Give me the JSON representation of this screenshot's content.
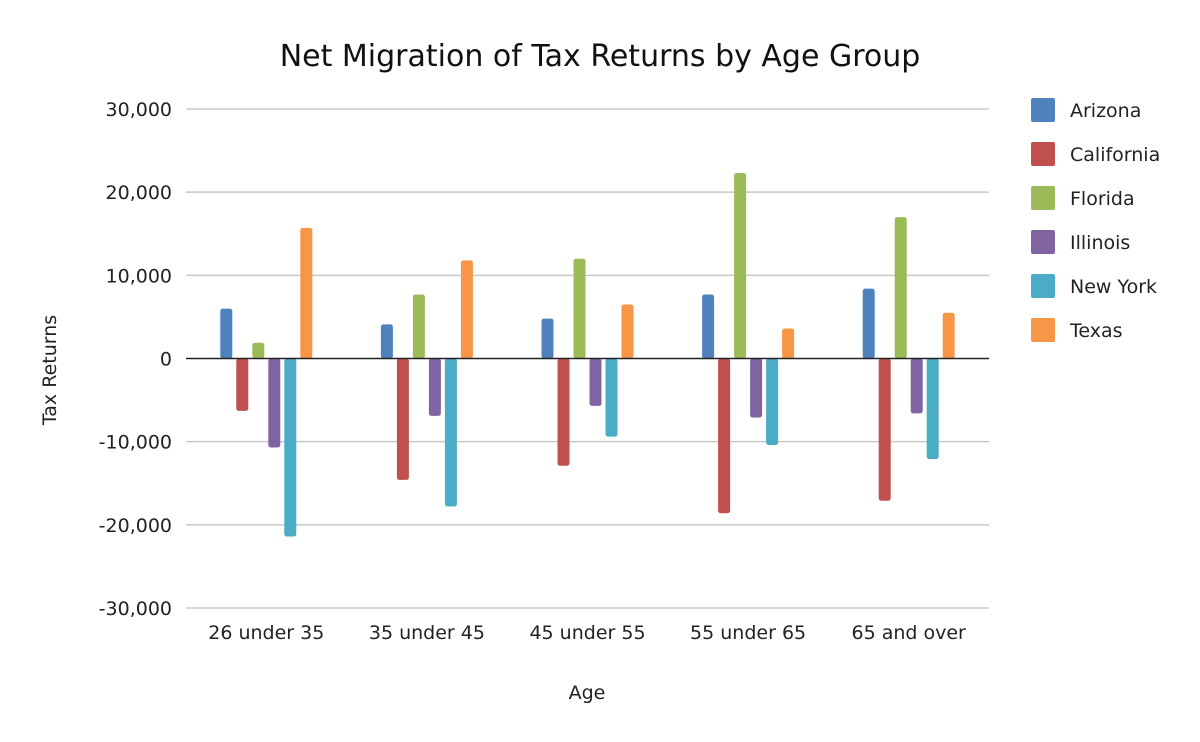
{
  "chart_data": {
    "type": "bar",
    "title": "Net Migration of Tax Returns by Age Group",
    "xlabel": "Age",
    "ylabel": "Tax Returns",
    "categories": [
      "26 under 35",
      "35 under 45",
      "45 under 55",
      "55 under 65",
      "65 and over"
    ],
    "ylim": [
      -30000,
      30000
    ],
    "yticks": [
      30000,
      20000,
      10000,
      0,
      -10000,
      -20000,
      -30000
    ],
    "ytick_labels": [
      "30,000",
      "20,000",
      "10,000",
      "0",
      "-10,000",
      "-20,000",
      "-30,000"
    ],
    "grid": true,
    "legend_position": "right",
    "series": [
      {
        "name": "Arizona",
        "color": "#4f81bd",
        "values": [
          6000,
          4100,
          4800,
          7700,
          8400
        ]
      },
      {
        "name": "California",
        "color": "#c0504d",
        "values": [
          -6300,
          -14600,
          -12900,
          -18600,
          -17100
        ]
      },
      {
        "name": "Florida",
        "color": "#9bbb59",
        "values": [
          1900,
          7700,
          12000,
          22300,
          17000
        ]
      },
      {
        "name": "Illinois",
        "color": "#8064a2",
        "values": [
          -10700,
          -6900,
          -5700,
          -7100,
          -6600
        ]
      },
      {
        "name": "New York",
        "color": "#4bacc6",
        "values": [
          -21400,
          -17800,
          -9400,
          -10400,
          -12100
        ]
      },
      {
        "name": "Texas",
        "color": "#f79646",
        "values": [
          15700,
          11800,
          6500,
          3600,
          5500
        ]
      }
    ]
  }
}
